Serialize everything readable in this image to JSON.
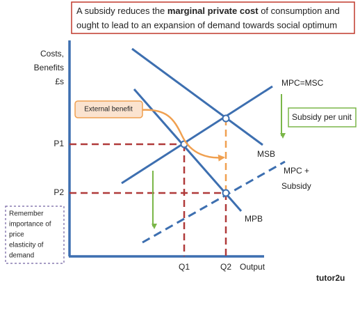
{
  "header": {
    "before": "A subsidy reduces the ",
    "bold": "marginal private cost",
    "after": " of consumption and",
    "line2": "ought to lead to an expansion of demand towards social optimum"
  },
  "axes": {
    "y_label": [
      "Costs,",
      "Benefits",
      "£s"
    ],
    "x_label": "Output",
    "price_labels": [
      "P1",
      "P2"
    ],
    "quantity_labels": [
      "Q1",
      "Q2"
    ]
  },
  "curves": {
    "msc": "MPC=MSC",
    "msb": "MSB",
    "mpb": "MPB",
    "subsidy": [
      "MPC +",
      "Subsidy"
    ]
  },
  "callouts": {
    "external_benefit": "External benefit",
    "subsidy_per_unit": "Subsidy per unit"
  },
  "note": [
    "Remember",
    "importance of",
    "price",
    "elasticity of",
    "demand"
  ],
  "logo": {
    "main": "tutor2u"
  }
}
